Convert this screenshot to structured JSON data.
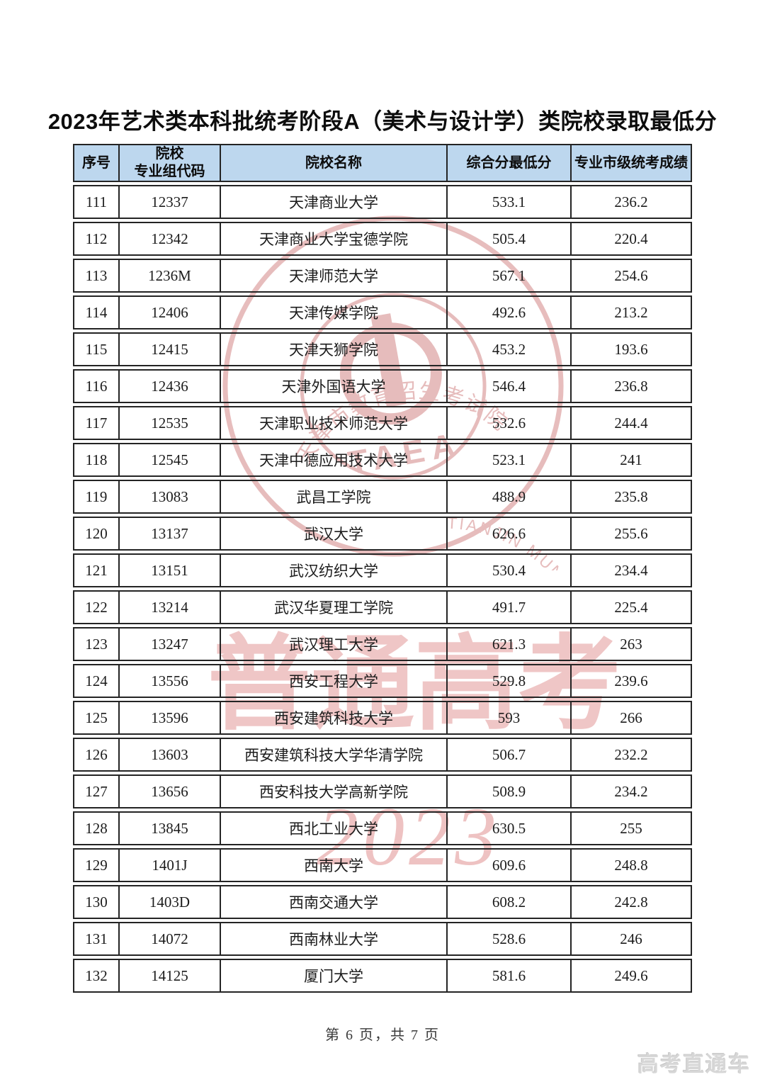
{
  "page": {
    "title": "2023年艺术类本科批统考阶段A（美术与设计学）类院校录取最低分",
    "footer": "第 6 页，共 7 页",
    "brand": "高考直通车"
  },
  "table": {
    "headers": [
      "序号",
      "院校\n专业组代码",
      "院校名称",
      "综合分最低分",
      "专业市级统考成绩"
    ],
    "rows": [
      [
        "111",
        "12337",
        "天津商业大学",
        "533.1",
        "236.2"
      ],
      [
        "112",
        "12342",
        "天津商业大学宝德学院",
        "505.4",
        "220.4"
      ],
      [
        "113",
        "1236M",
        "天津师范大学",
        "567.1",
        "254.6"
      ],
      [
        "114",
        "12406",
        "天津传媒学院",
        "492.6",
        "213.2"
      ],
      [
        "115",
        "12415",
        "天津天狮学院",
        "453.2",
        "193.6"
      ],
      [
        "116",
        "12436",
        "天津外国语大学",
        "546.4",
        "236.8"
      ],
      [
        "117",
        "12535",
        "天津职业技术师范大学",
        "532.6",
        "244.4"
      ],
      [
        "118",
        "12545",
        "天津中德应用技术大学",
        "523.1",
        "241"
      ],
      [
        "119",
        "13083",
        "武昌工学院",
        "488.9",
        "235.8"
      ],
      [
        "120",
        "13137",
        "武汉大学",
        "626.6",
        "255.6"
      ],
      [
        "121",
        "13151",
        "武汉纺织大学",
        "530.4",
        "234.4"
      ],
      [
        "122",
        "13214",
        "武汉华夏理工学院",
        "491.7",
        "225.4"
      ],
      [
        "123",
        "13247",
        "武汉理工大学",
        "621.3",
        "263"
      ],
      [
        "124",
        "13556",
        "西安工程大学",
        "529.8",
        "239.6"
      ],
      [
        "125",
        "13596",
        "西安建筑科技大学",
        "593",
        "266"
      ],
      [
        "126",
        "13603",
        "西安建筑科技大学华清学院",
        "506.7",
        "232.2"
      ],
      [
        "127",
        "13656",
        "西安科技大学高新学院",
        "508.9",
        "234.2"
      ],
      [
        "128",
        "13845",
        "西北工业大学",
        "630.5",
        "255"
      ],
      [
        "129",
        "1401J",
        "西南大学",
        "609.6",
        "248.8"
      ],
      [
        "130",
        "1403D",
        "西南交通大学",
        "608.2",
        "242.8"
      ],
      [
        "131",
        "14072",
        "西南林业大学",
        "528.6",
        "246"
      ],
      [
        "132",
        "14125",
        "厦门大学",
        "581.6",
        "249.6"
      ]
    ]
  },
  "watermarks": {
    "seal": {
      "ring_text": "TIANJIN MUNICIPAL EDUCATIONAL ADMISSION AND EXAMINATIONS AUTHORITY",
      "acronym": "TAEA",
      "cn_text": "天津市教育招生考试院",
      "color": "#cf7b7b"
    },
    "big_text": "普通高考",
    "year_text": "2023",
    "pink": "#efc6c6"
  },
  "colors": {
    "header_bg": "#bdd7ee",
    "border": "#242424"
  }
}
